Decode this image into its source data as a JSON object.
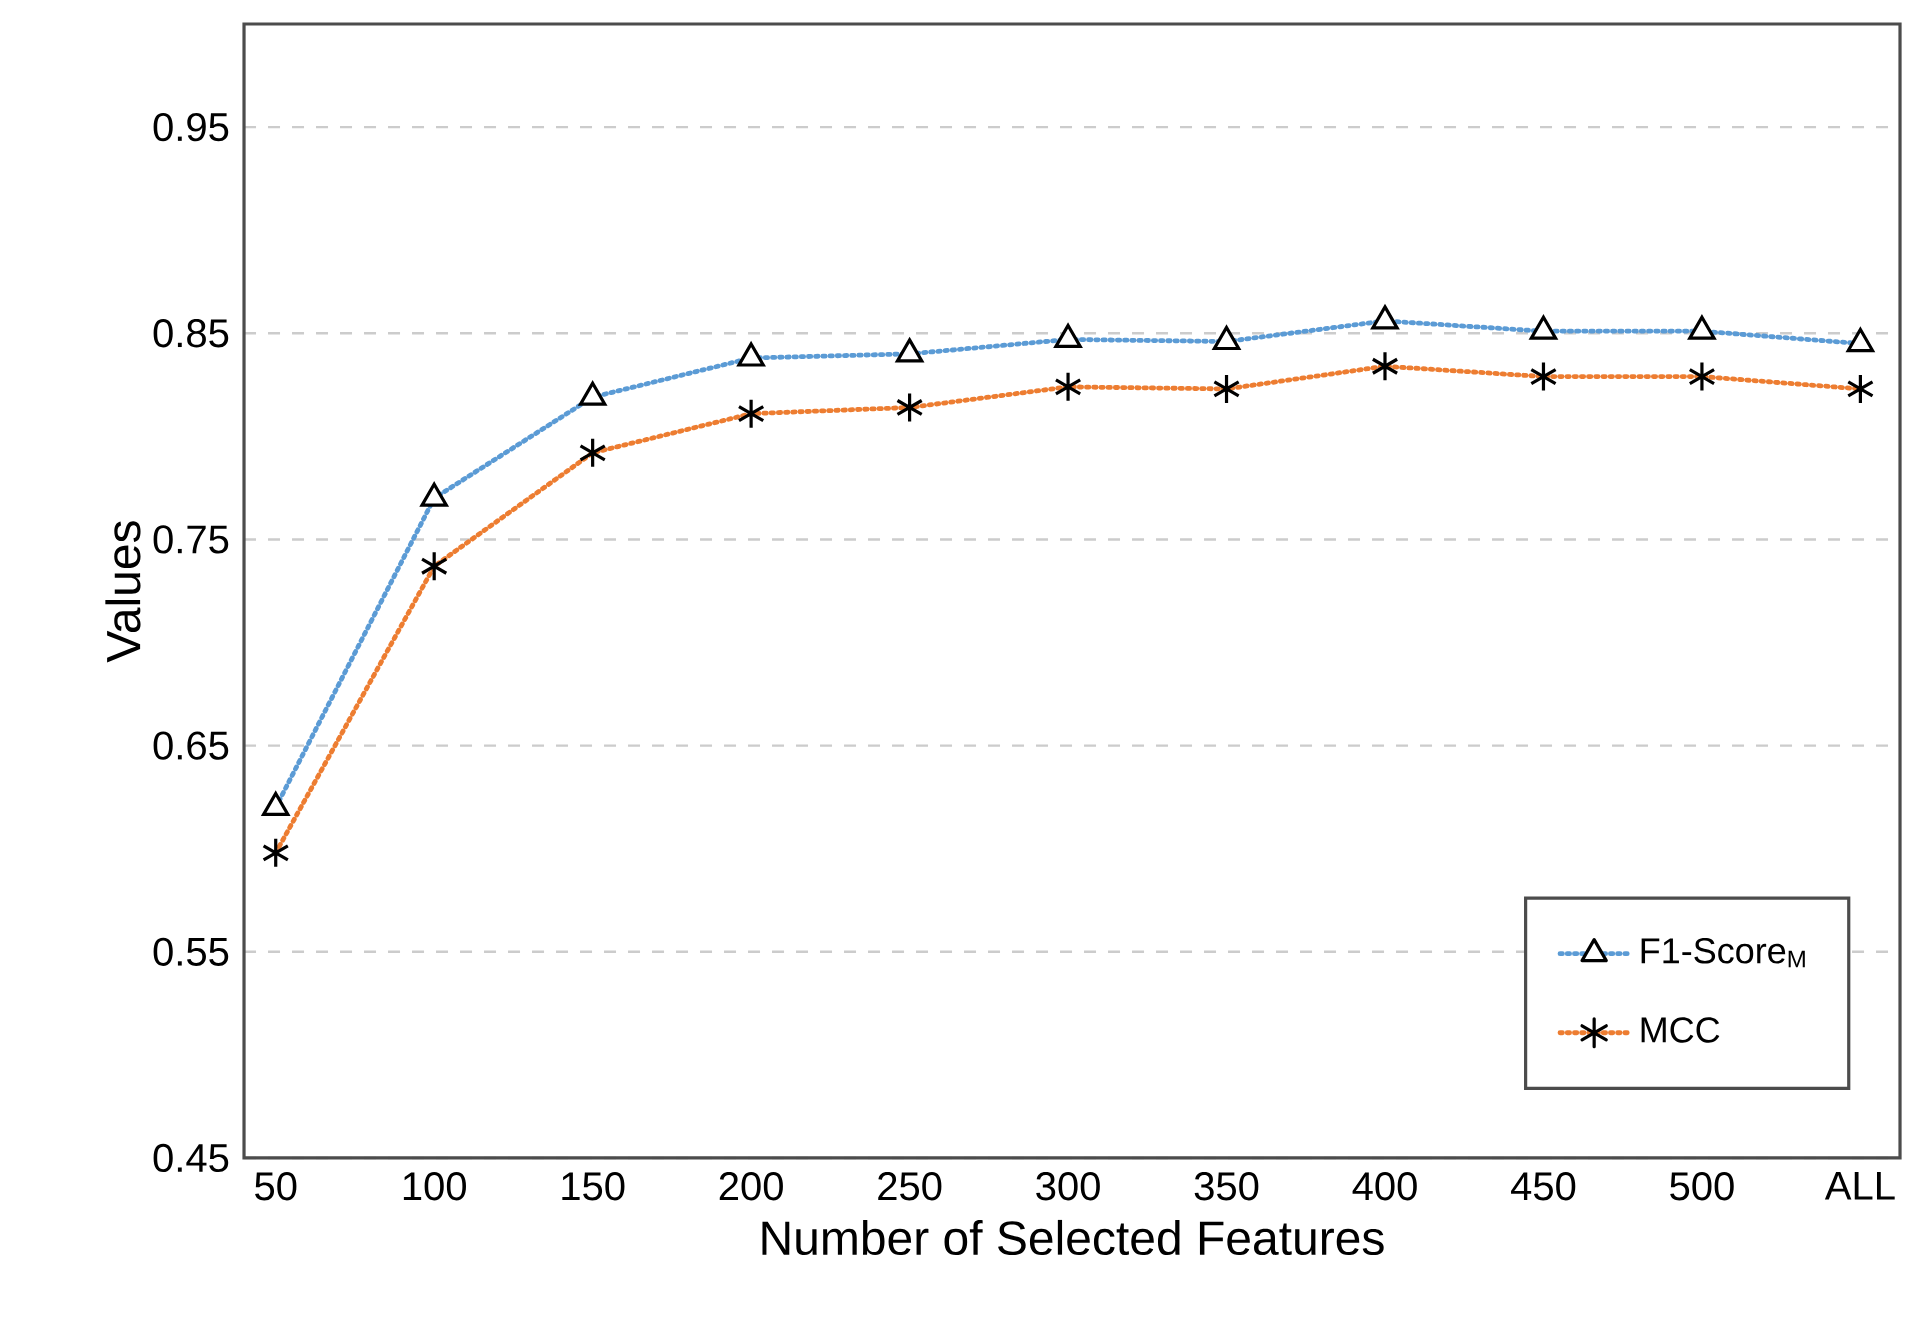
{
  "chart_data": {
    "type": "line",
    "xlabel": "Number of Selected Features",
    "ylabel": "Values",
    "categories": [
      "50",
      "100",
      "150",
      "200",
      "250",
      "300",
      "350",
      "400",
      "450",
      "500",
      "ALL"
    ],
    "series": [
      {
        "name": "F1-Score$_{M}$",
        "color": "#5b9bd5",
        "marker": "triangle",
        "values": [
          0.62,
          0.77,
          0.819,
          0.838,
          0.84,
          0.847,
          0.846,
          0.856,
          0.851,
          0.851,
          0.845
        ]
      },
      {
        "name": "MCC",
        "color": "#ed7d31",
        "marker": "cross",
        "values": [
          0.598,
          0.737,
          0.792,
          0.811,
          0.814,
          0.824,
          0.823,
          0.834,
          0.829,
          0.829,
          0.823
        ]
      }
    ],
    "ylim": [
      0.45,
      1.0
    ],
    "yticks": [
      0.45,
      0.55,
      0.65,
      0.75,
      0.85,
      0.95
    ],
    "grid": "y",
    "legend": "bottom right",
    "line_style": "dotted"
  }
}
